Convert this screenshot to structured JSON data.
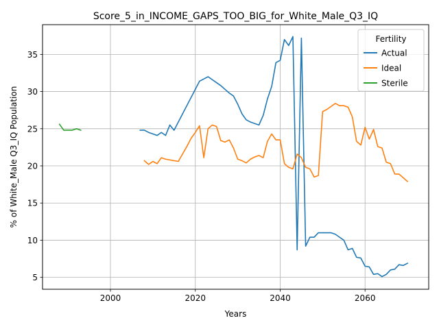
{
  "chart_data": {
    "type": "line",
    "title": "Score_5_in_INCOME_GAPS_TOO_BIG_for_White_Male_Q3_IQ",
    "xlabel": "Years",
    "ylabel": "% of White_Male Q3_IQ Population",
    "xlim": [
      1984,
      2075
    ],
    "ylim": [
      3.4,
      39
    ],
    "xticks": [
      2000,
      2020,
      2040,
      2060
    ],
    "yticks": [
      5,
      10,
      15,
      20,
      25,
      30,
      35
    ],
    "grid": true,
    "legend": {
      "title": "Fertility",
      "placement": "top-right"
    },
    "series": [
      {
        "name": "Actual",
        "color": "#1f77b4",
        "x": [
          2007,
          2008,
          2009,
          2010,
          2011,
          2012,
          2013,
          2014,
          2015,
          2016,
          2017,
          2018,
          2019,
          2020,
          2021,
          2022,
          2023,
          2024,
          2025,
          2026,
          2027,
          2028,
          2029,
          2030,
          2031,
          2032,
          2033,
          2034,
          2035,
          2036,
          2037,
          2038,
          2039,
          2040,
          2041,
          2042,
          2043,
          2044,
          2045,
          2046,
          2047,
          2048,
          2049,
          2050,
          2051,
          2052,
          2053,
          2054,
          2055,
          2056,
          2057,
          2058,
          2059,
          2060,
          2061,
          2062,
          2063,
          2064,
          2065,
          2066,
          2067,
          2068,
          2069,
          2070
        ],
        "y": [
          24.8,
          24.8,
          24.5,
          24.3,
          24.1,
          24.5,
          24.1,
          25.5,
          24.8,
          25.9,
          27.0,
          28.1,
          29.2,
          30.3,
          31.4,
          31.7,
          32.0,
          31.6,
          31.2,
          30.8,
          30.3,
          29.8,
          29.4,
          28.3,
          27.0,
          26.2,
          25.9,
          25.7,
          25.5,
          26.8,
          29.0,
          30.7,
          33.9,
          34.2,
          37.0,
          36.2,
          37.4,
          8.7,
          37.2,
          9.2,
          10.4,
          10.4,
          11.0,
          11.0,
          11.0,
          11.0,
          10.8,
          10.4,
          10.0,
          8.7,
          8.9,
          7.7,
          7.6,
          6.5,
          6.4,
          5.4,
          5.5,
          5.1,
          5.4,
          6.0,
          6.1,
          6.7,
          6.6,
          6.9
        ]
      },
      {
        "name": "Ideal",
        "color": "#ff7f0e",
        "x": [
          2008,
          2009,
          2010,
          2011,
          2012,
          2013,
          2014,
          2015,
          2016,
          2017,
          2018,
          2019,
          2020,
          2021,
          2022,
          2023,
          2024,
          2025,
          2026,
          2027,
          2028,
          2029,
          2030,
          2031,
          2032,
          2033,
          2034,
          2035,
          2036,
          2037,
          2038,
          2039,
          2040,
          2041,
          2042,
          2043,
          2044,
          2045,
          2046,
          2047,
          2048,
          2049,
          2050,
          2051,
          2052,
          2053,
          2054,
          2055,
          2056,
          2057,
          2058,
          2059,
          2060,
          2061,
          2062,
          2063,
          2064,
          2065,
          2066,
          2067,
          2068,
          2069,
          2070
        ],
        "y": [
          20.7,
          20.2,
          20.6,
          20.3,
          21.1,
          20.9,
          20.8,
          20.7,
          20.6,
          21.6,
          22.6,
          23.7,
          24.5,
          25.4,
          21.1,
          25.0,
          25.5,
          25.3,
          23.4,
          23.2,
          23.5,
          22.4,
          20.9,
          20.7,
          20.4,
          20.9,
          21.2,
          21.4,
          21.1,
          23.3,
          24.3,
          23.5,
          23.5,
          20.3,
          19.8,
          19.6,
          21.6,
          21.1,
          19.8,
          19.6,
          18.5,
          18.7,
          27.3,
          27.6,
          28.0,
          28.4,
          28.1,
          28.1,
          27.9,
          26.6,
          23.3,
          22.8,
          25.2,
          23.6,
          24.9,
          22.6,
          22.4,
          20.5,
          20.3,
          18.9,
          18.9,
          18.4,
          17.9
        ]
      },
      {
        "name": "Sterile",
        "color": "#2ca02c",
        "x": [
          1988,
          1989,
          1990,
          1991,
          1992,
          1993
        ],
        "y": [
          25.6,
          24.8,
          24.8,
          24.8,
          25.0,
          24.8
        ]
      }
    ]
  }
}
